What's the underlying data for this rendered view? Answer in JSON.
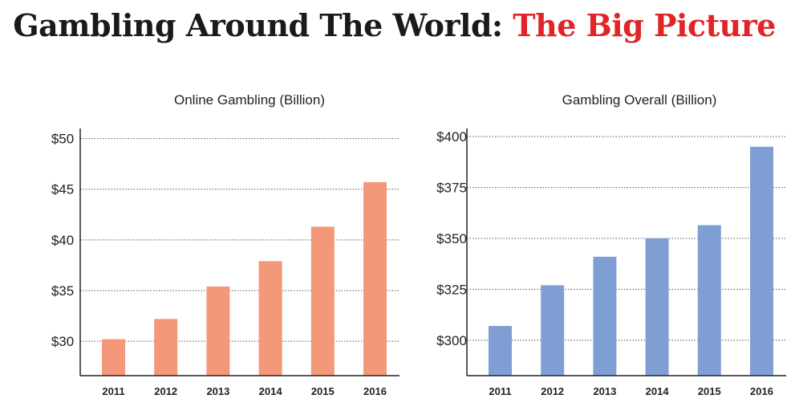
{
  "header": {
    "title_main": "Gambling Around The World:",
    "title_accent": "The Big Picture",
    "accent_color": "#e02428"
  },
  "chart_data": [
    {
      "type": "bar",
      "title": "Online Gambling (Billion)",
      "categories": [
        "2011",
        "2012",
        "2013",
        "2014",
        "2015",
        "2016"
      ],
      "values": [
        30.2,
        32.2,
        35.4,
        37.9,
        41.3,
        45.7
      ],
      "ylim": [
        26.6,
        51
      ],
      "yticks": [
        30,
        35,
        40,
        45,
        50
      ],
      "ytick_labels": [
        "$30",
        "$35",
        "$40",
        "$45",
        "$50"
      ],
      "grid": true,
      "bar_color": "#f4987a"
    },
    {
      "type": "bar",
      "title": "Gambling Overall (Billion)",
      "categories": [
        "2011",
        "2012",
        "2013",
        "2014",
        "2015",
        "2016"
      ],
      "values": [
        307,
        327,
        341,
        350,
        356.5,
        395
      ],
      "ylim": [
        282.6,
        404
      ],
      "yticks": [
        300,
        325,
        350,
        375,
        400
      ],
      "ytick_labels": [
        "$300",
        "$325",
        "$350",
        "$375",
        "$400"
      ],
      "grid": true,
      "bar_color": "#7f9fd4"
    }
  ]
}
